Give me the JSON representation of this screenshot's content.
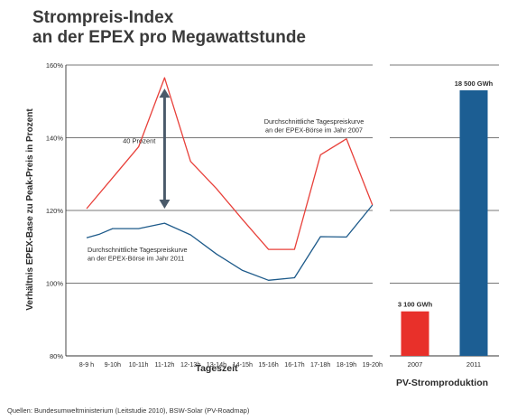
{
  "title_line1": "Strompreis-Index",
  "title_line2": "an der EPEX pro Megawattstunde",
  "source": "Quellen: Bundesumweltministerium (Leitstudie 2010), BSW-Solar (PV-Roadmap)",
  "chart_data": [
    {
      "type": "line",
      "xlabel": "Tageszeit",
      "ylabel": "Verhältnis EPEX-Base zu Peak-Preis in Prozent",
      "categories": [
        "8-9 h",
        "9-10h",
        "10-11h",
        "11-12h",
        "12-13h",
        "13-14h",
        "14-15h",
        "15-16h",
        "16-17h",
        "17-18h",
        "18-19h",
        "19-20h"
      ],
      "y_ticks": [
        "80%",
        "100%",
        "120%",
        "140%",
        "160%"
      ],
      "ylim": [
        80,
        160
      ],
      "grid": true,
      "series": [
        {
          "name": "Durchschnittliche Tagespreiskurve an der EPEX-Börse im Jahr 2007",
          "label_line1": "Durchschnittliche Tagespreiskurve",
          "label_line2": "an der EPEX-Börse im Jahr 2007",
          "color": "#e8403a",
          "x": [
            0,
            1,
            2,
            3,
            4,
            5,
            6,
            7,
            8,
            9,
            10,
            11
          ],
          "values": [
            120.5,
            129,
            137.5,
            156.5,
            133.5,
            126,
            117.5,
            109.3,
            109.3,
            135.3,
            139.7,
            121.5
          ]
        },
        {
          "name": "Durchschnittliche Tagespreiskurve an der EPEX-Börse im Jahr 2011",
          "label_line1": "Durchschnittliche Tagespreiskurve",
          "label_line2": "an der EPEX-Börse im Jahr 2011",
          "color": "#1d5a8a",
          "x": [
            0,
            0.5,
            1,
            2,
            3,
            4,
            5,
            6,
            7,
            8,
            9,
            10,
            11
          ],
          "values": [
            112.5,
            113.5,
            115,
            115,
            116.5,
            113.3,
            108,
            103.5,
            100.8,
            101.5,
            112.8,
            112.7,
            121.5
          ]
        }
      ],
      "annotation": {
        "text": "40 Prozent",
        "from_value": 121,
        "to_value": 153,
        "category_index": 3,
        "color": "#4a5a6a"
      }
    },
    {
      "type": "bar",
      "xlabel": "PV-Stromproduktion",
      "categories": [
        "2007",
        "2011"
      ],
      "values": [
        3100,
        18500
      ],
      "data_labels": [
        "3 100 GWh",
        "18 500 GWh"
      ],
      "colors": [
        "#e8302a",
        "#1c5e93"
      ],
      "unit": "GWh"
    }
  ]
}
